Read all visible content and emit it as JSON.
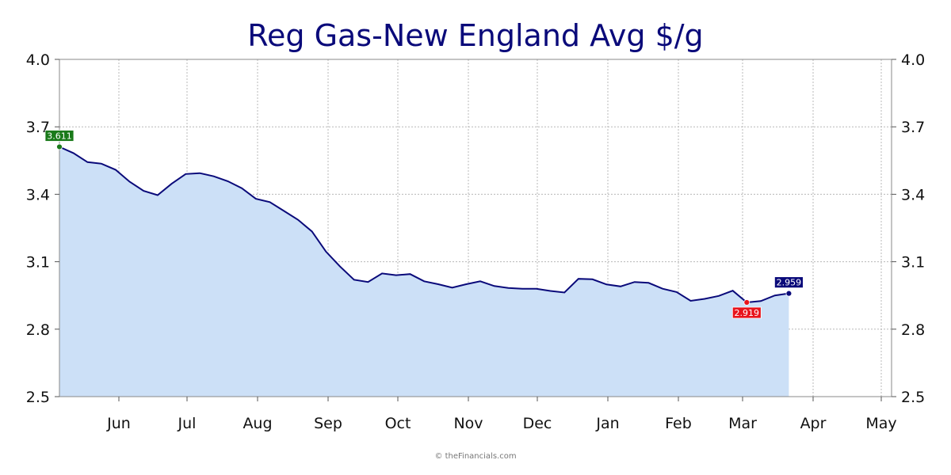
{
  "chart_data": {
    "type": "area",
    "title": "Reg Gas-New England Avg $/g",
    "xlabel": "",
    "ylabel": "",
    "ylim": [
      2.5,
      4.0
    ],
    "yticks": [
      "4.0",
      "3.7",
      "3.4",
      "3.1",
      "2.8",
      "2.5"
    ],
    "yticks_right": true,
    "grid": true,
    "month_labels": [
      "Jun",
      "Jul",
      "Aug",
      "Sep",
      "Oct",
      "Nov",
      "Dec",
      "Jan",
      "Feb",
      "Mar",
      "Apr",
      "May"
    ],
    "x_weeks": [
      0,
      1,
      2,
      3,
      4,
      5,
      6,
      7,
      8,
      9,
      10,
      11,
      12,
      13,
      14,
      15,
      16,
      17,
      18,
      19,
      20,
      21,
      22,
      23,
      24,
      25,
      26,
      27,
      28,
      29,
      30,
      31,
      32,
      33,
      34,
      35,
      36,
      37,
      38,
      39,
      40,
      41,
      42,
      43,
      44,
      45,
      46,
      47,
      48,
      49,
      50,
      51,
      52
    ],
    "values": [
      3.611,
      3.583,
      3.543,
      3.536,
      3.509,
      3.456,
      3.415,
      3.396,
      3.447,
      3.49,
      3.494,
      3.48,
      3.458,
      3.427,
      3.38,
      3.365,
      3.326,
      3.287,
      3.235,
      3.145,
      3.079,
      3.02,
      3.01,
      3.048,
      3.04,
      3.045,
      3.013,
      3.0,
      2.985,
      3.0,
      3.013,
      2.992,
      2.983,
      2.98,
      2.98,
      2.97,
      2.963,
      3.024,
      3.022,
      2.999,
      2.99,
      3.01,
      3.006,
      2.98,
      2.965,
      2.926,
      2.935,
      2.948,
      2.971,
      2.919,
      2.925,
      2.95,
      2.959
    ],
    "series_color": "#0a0a7a",
    "fill_color": "#cce0f7",
    "annotations": [
      {
        "label": "3.611",
        "week": 0,
        "value": 3.611,
        "color": "#1a7a1a",
        "placement": "above"
      },
      {
        "label": "2.919",
        "week": 49,
        "value": 2.919,
        "color": "#e8141c",
        "placement": "below"
      },
      {
        "label": "2.959",
        "week": 52,
        "value": 2.959,
        "color": "#0a0a7a",
        "placement": "above"
      }
    ]
  },
  "credit": "© theFinancials.com"
}
